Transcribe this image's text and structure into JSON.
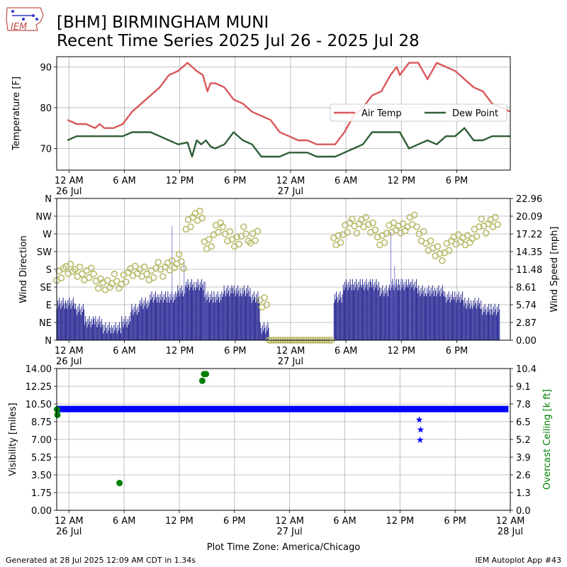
{
  "header": {
    "title_line1": "[BHM] BIRMINGHAM MUNI",
    "title_line2": "Recent Time Series 2025 Jul 26 - 2025 Jul 28",
    "logo_text": "IEM"
  },
  "footer": {
    "left": "Generated at 28 Jul 2025 12:09 AM CDT in 1.34s",
    "right": "IEM Autoplot App #43"
  },
  "chart_data": [
    {
      "type": "line",
      "ylabel": "Temperature [F]",
      "ylim": [
        64.7,
        92.5
      ],
      "yticks": [
        70,
        80,
        90
      ],
      "xlim_hours": [
        -1.33,
        47.8
      ],
      "grid": true,
      "legend": "right",
      "x_tick_labels": [
        "12 AM\n26 Jul",
        "6 AM",
        "12 PM",
        "6 PM",
        "12 AM\n27 Jul",
        "6 AM",
        "12 PM",
        "6 PM"
      ],
      "series": [
        {
          "name": "Air Temp",
          "color": "#d9585b",
          "points": [
            [
              -0.17,
              77
            ],
            [
              0.83,
              76
            ],
            [
              1.83,
              76
            ],
            [
              2.83,
              75
            ],
            [
              3.33,
              76
            ],
            [
              3.83,
              75
            ],
            [
              4.83,
              75
            ],
            [
              5.83,
              76
            ],
            [
              6.83,
              79
            ],
            [
              7.83,
              81
            ],
            [
              8.83,
              83
            ],
            [
              9.83,
              85
            ],
            [
              10.83,
              88
            ],
            [
              11.83,
              89
            ],
            [
              12.83,
              91
            ],
            [
              13.83,
              89
            ],
            [
              14.5,
              88
            ],
            [
              15.0,
              84
            ],
            [
              15.33,
              86
            ],
            [
              15.83,
              86
            ],
            [
              16.83,
              85
            ],
            [
              17.83,
              82
            ],
            [
              18.83,
              81
            ],
            [
              19.83,
              79
            ],
            [
              20.83,
              78
            ],
            [
              21.83,
              77
            ],
            [
              22.83,
              74
            ],
            [
              23.83,
              73
            ],
            [
              24.83,
              72
            ],
            [
              25.83,
              72
            ],
            [
              26.83,
              71
            ],
            [
              27.83,
              71
            ],
            [
              28.83,
              71
            ],
            [
              29.83,
              74
            ],
            [
              30.83,
              78
            ],
            [
              31.83,
              80
            ],
            [
              32.83,
              83
            ],
            [
              33.83,
              84
            ],
            [
              34.83,
              88
            ],
            [
              35.5,
              90
            ],
            [
              35.83,
              88
            ],
            [
              36.83,
              91
            ],
            [
              37.83,
              91
            ],
            [
              38.83,
              87
            ],
            [
              39.83,
              91
            ],
            [
              40.83,
              90
            ],
            [
              41.83,
              89
            ],
            [
              42.83,
              87
            ],
            [
              43.83,
              85
            ],
            [
              44.83,
              84
            ],
            [
              45.83,
              81
            ],
            [
              46.83,
              80
            ],
            [
              47.8,
              79
            ]
          ]
        },
        {
          "name": "Dew Point",
          "color": "#2f5f35",
          "points": [
            [
              -0.17,
              72
            ],
            [
              0.83,
              73
            ],
            [
              1.83,
              73
            ],
            [
              2.83,
              73
            ],
            [
              3.83,
              73
            ],
            [
              4.83,
              73
            ],
            [
              5.83,
              73
            ],
            [
              6.83,
              74
            ],
            [
              7.83,
              74
            ],
            [
              8.83,
              74
            ],
            [
              9.83,
              73
            ],
            [
              10.83,
              72
            ],
            [
              11.83,
              71
            ],
            [
              12.83,
              71.5
            ],
            [
              13.33,
              68
            ],
            [
              13.83,
              72
            ],
            [
              14.33,
              71
            ],
            [
              14.83,
              72
            ],
            [
              15.33,
              70.5
            ],
            [
              15.83,
              70
            ],
            [
              16.83,
              71
            ],
            [
              17.83,
              74
            ],
            [
              18.83,
              72
            ],
            [
              19.83,
              71
            ],
            [
              20.83,
              68
            ],
            [
              21.83,
              68
            ],
            [
              22.83,
              68
            ],
            [
              23.83,
              69
            ],
            [
              24.83,
              69
            ],
            [
              25.83,
              69
            ],
            [
              26.83,
              68
            ],
            [
              27.83,
              68
            ],
            [
              28.83,
              68
            ],
            [
              29.83,
              69
            ],
            [
              30.83,
              70
            ],
            [
              31.83,
              71
            ],
            [
              32.83,
              74
            ],
            [
              33.83,
              74
            ],
            [
              34.83,
              74
            ],
            [
              35.83,
              74
            ],
            [
              36.83,
              70
            ],
            [
              37.83,
              71
            ],
            [
              38.83,
              72
            ],
            [
              39.83,
              71
            ],
            [
              40.83,
              73
            ],
            [
              41.83,
              73
            ],
            [
              42.83,
              75
            ],
            [
              43.83,
              72
            ],
            [
              44.83,
              72
            ],
            [
              45.83,
              73
            ],
            [
              46.83,
              73
            ],
            [
              47.8,
              73
            ]
          ]
        }
      ]
    },
    {
      "type": "bar",
      "ylabel": "Wind Direction",
      "y2label": "Wind Speed [mph]",
      "direction_ticks": [
        "N",
        "NE",
        "E",
        "SE",
        "S",
        "SW",
        "W",
        "NW",
        "N"
      ],
      "speed_ticks": [
        "0.00",
        "2.87",
        "5.74",
        "8.61",
        "11.48",
        "14.35",
        "17.22",
        "20.09",
        "22.96"
      ],
      "speed_max": 22.96,
      "xlim_hours": [
        -1.33,
        47.8
      ],
      "grid": true,
      "x_tick_labels": [
        "12 AM\n26 Jul",
        "6 AM",
        "12 PM",
        "6 PM",
        "12 AM\n27 Jul",
        "6 AM",
        "12 PM",
        "6 PM"
      ],
      "speed_series": {
        "name": "Wind Speed",
        "color": "#333399",
        "hourly_mph": [
          6,
          6,
          5,
          3,
          3,
          2,
          2,
          3,
          5,
          6,
          7,
          7,
          7,
          8,
          9,
          9,
          7,
          7,
          8,
          8,
          8,
          7,
          2,
          0,
          0,
          0,
          0,
          0,
          0,
          0,
          7,
          9,
          9,
          9,
          9,
          8,
          9,
          9,
          9,
          8,
          8,
          8,
          7,
          7,
          6,
          6,
          5,
          5
        ],
        "gust_spikes": [
          [
            12.5,
            18.5
          ],
          [
            13.8,
            12.5
          ],
          [
            16.1,
            9.5
          ],
          [
            36.2,
            17.5
          ],
          [
            36.6,
            12.0
          ],
          [
            37.3,
            10.0
          ],
          [
            38.3,
            9.4
          ]
        ]
      },
      "direction_series": {
        "name": "Wind Direction",
        "color": "#b9b96a",
        "hourly_deg": [
          170,
          175,
          180,
          165,
          150,
          140,
          150,
          160,
          170,
          180,
          165,
          180,
          190,
          200,
          300,
          310,
          250,
          280,
          270,
          250,
          270,
          265,
          90,
          0,
          0,
          0,
          0,
          0,
          0,
          0,
          260,
          280,
          290,
          300,
          280,
          260,
          280,
          290,
          300,
          270,
          240,
          220,
          240,
          250,
          260,
          270,
          290,
          300
        ]
      }
    },
    {
      "type": "scatter",
      "ylabel": "Visibility [miles]",
      "y2label": "Overcast Ceiling [k ft]",
      "ylim": [
        0,
        14
      ],
      "yticks": [
        "0.00",
        "1.75",
        "3.50",
        "5.25",
        "7.00",
        "8.75",
        "10.50",
        "12.25",
        "14.00"
      ],
      "y2ticks": [
        "0.0",
        "1.3",
        "2.6",
        "3.9",
        "5.2",
        "6.5",
        "7.8",
        "9.1",
        "10.4"
      ],
      "y2lim": [
        0,
        10.4
      ],
      "xlim_hours": [
        -1.33,
        48
      ],
      "grid": true,
      "x_tick_labels": [
        "12 AM\n26 Jul",
        "6 AM",
        "12 PM",
        "6 PM",
        "12 AM\n27 Jul",
        "6 AM",
        "12 PM",
        "6 PM",
        "12 AM\n28 Jul"
      ],
      "xlabel": "Plot Time Zone: America/Chicago",
      "visibility": {
        "name": "Visibility",
        "color": "#0000ff",
        "baseline": 10,
        "from_hours": -1.33,
        "to_hours": 47.8,
        "dips": [
          [
            38.1,
            9.0
          ],
          [
            38.25,
            8.0
          ],
          [
            38.2,
            7.0
          ]
        ]
      },
      "ceiling": {
        "name": "Overcast Ceiling",
        "color": "#008000",
        "points": [
          [
            -1.3,
            7.4
          ],
          [
            -1.25,
            7.0
          ],
          [
            5.5,
            2.0
          ],
          [
            14.5,
            9.5
          ],
          [
            14.7,
            10.0
          ],
          [
            14.9,
            10.0
          ]
        ]
      }
    }
  ]
}
